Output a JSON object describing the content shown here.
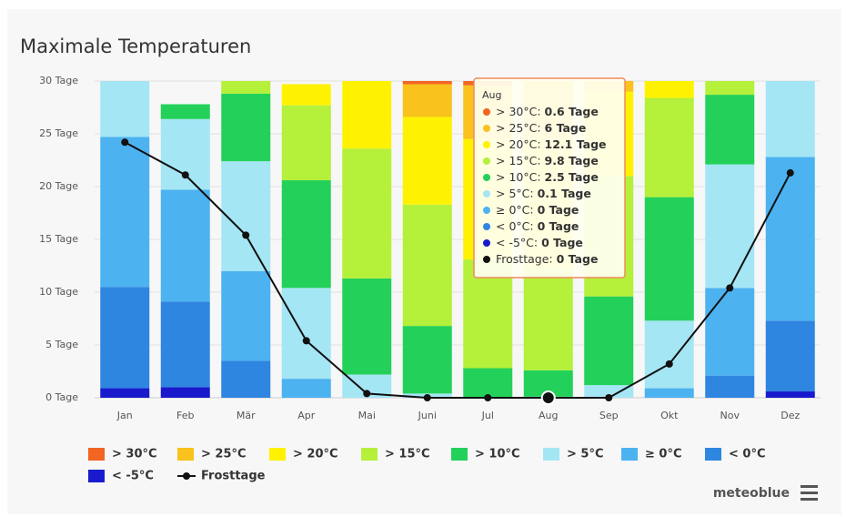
{
  "chart_data": {
    "type": "bar",
    "stacked": true,
    "title": "Maximale Temperaturen",
    "categories": [
      "Jan",
      "Feb",
      "Mär",
      "Apr",
      "Mai",
      "Juni",
      "Jul",
      "Aug",
      "Sep",
      "Okt",
      "Nov",
      "Dez"
    ],
    "ylim": [
      0,
      30
    ],
    "yticks": [
      {
        "value": 0,
        "label": "0 Tage"
      },
      {
        "value": 5,
        "label": "5 Tage"
      },
      {
        "value": 10,
        "label": "10 Tage"
      },
      {
        "value": 15,
        "label": "15 Tage"
      },
      {
        "value": 20,
        "label": "20 Tage"
      },
      {
        "value": 25,
        "label": "25 Tage"
      },
      {
        "value": 30,
        "label": "30 Tage"
      }
    ],
    "grid": true,
    "series": [
      {
        "name": "> 30°C",
        "color": "#f26522",
        "values": [
          0,
          0,
          0,
          0,
          0,
          0.3,
          0.4,
          0.6,
          0,
          0,
          0,
          0
        ]
      },
      {
        "name": "> 25°C",
        "color": "#f9c21c",
        "values": [
          0,
          0,
          0,
          0,
          0,
          3.1,
          5.1,
          6,
          1.0,
          0,
          0,
          0
        ]
      },
      {
        "name": "> 20°C",
        "color": "#fff200",
        "values": [
          0,
          0,
          0,
          2.0,
          6.4,
          8.3,
          11.4,
          12.1,
          8.0,
          1.6,
          0,
          0
        ]
      },
      {
        "name": "> 15°C",
        "color": "#b5f03a",
        "values": [
          0,
          0,
          1.2,
          7.1,
          12.3,
          11.5,
          10.3,
          9.8,
          11.4,
          9.4,
          1.3,
          0
        ]
      },
      {
        "name": "> 10°C",
        "color": "#23d15a",
        "values": [
          0,
          1.4,
          6.4,
          10.2,
          9.1,
          6.4,
          2.8,
          2.5,
          8.4,
          11.7,
          6.6,
          0
        ]
      },
      {
        "name": "> 5°C",
        "color": "#a5e6f5",
        "values": [
          5.3,
          6.7,
          10.4,
          8.6,
          2.2,
          0.4,
          0,
          0.1,
          1.2,
          6.4,
          11.7,
          7.2
        ]
      },
      {
        "name": "≥ 0°C",
        "color": "#4db2f0",
        "values": [
          14.2,
          10.6,
          8.5,
          1.8,
          0,
          0,
          0,
          0,
          0,
          0.9,
          8.3,
          15.5
        ]
      },
      {
        "name": "< 0°C",
        "color": "#2f86e0",
        "values": [
          9.6,
          8.1,
          3.5,
          0,
          0,
          0,
          0,
          0,
          0,
          0,
          2.1,
          6.7
        ]
      },
      {
        "name": "< -5°C",
        "color": "#1a1acd",
        "values": [
          0.9,
          1.0,
          0,
          0,
          0,
          0,
          0,
          0,
          0,
          0,
          0,
          0.6
        ]
      },
      {
        "name": "Frosttage",
        "type": "line",
        "color": "#111111",
        "values": [
          24.2,
          21.1,
          15.4,
          5.4,
          0.4,
          0,
          0,
          0,
          0,
          3.2,
          10.4,
          21.3
        ]
      }
    ],
    "tooltip": {
      "category": "Aug",
      "value_labels": [
        "0.6 Tage",
        "6 Tage",
        "12.1 Tage",
        "9.8 Tage",
        "2.5 Tage",
        "0.1 Tage",
        "0 Tage",
        "0 Tage",
        "0 Tage",
        "0 Tage"
      ]
    },
    "brand": "meteoblue"
  }
}
